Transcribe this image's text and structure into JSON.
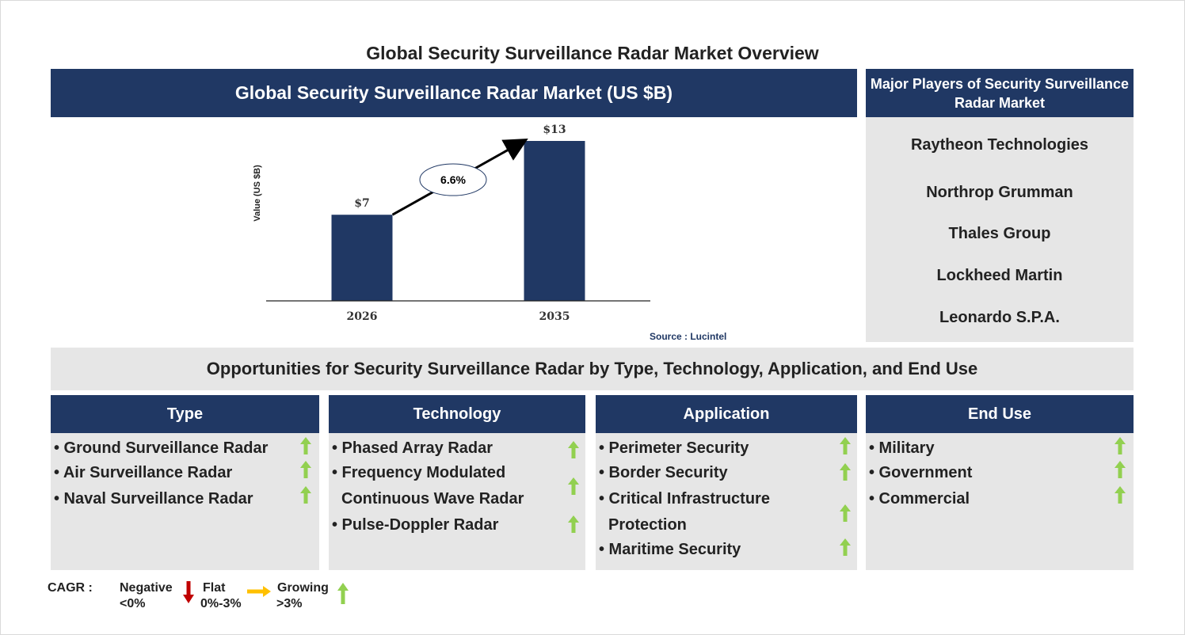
{
  "title": "Global Security Surveillance Radar Market Overview",
  "market_header": "Global Security Surveillance Radar Market (US $B)",
  "chart_data": {
    "type": "bar",
    "categories": [
      "2026",
      "2035"
    ],
    "values": [
      7,
      13
    ],
    "data_labels": [
      "$7",
      "$13"
    ],
    "ylabel": "Value (US $B)",
    "xlabel": "",
    "cagr_annotation": "6.6%",
    "bar_color": "#203864",
    "grid": false
  },
  "source": "Source : Lucintel",
  "players": {
    "header": "Major Players of Security Surveillance Radar Market",
    "list": [
      "Raytheon Technologies",
      "Northrop Grumman",
      "Thales Group",
      "Lockheed Martin",
      "Leonardo S.P.A."
    ]
  },
  "opportunities": {
    "header": "Opportunities for Security Surveillance Radar by Type, Technology, Application, and End Use",
    "columns": [
      {
        "title": "Type",
        "items": [
          "• Ground Surveillance Radar",
          "• Air Surveillance Radar",
          "• Naval Surveillance Radar"
        ],
        "trend": [
          "growing",
          "growing",
          "growing"
        ]
      },
      {
        "title": "Technology",
        "items": [
          "• Phased Array Radar",
          "• Frequency Modulated",
          "Continuous Wave Radar",
          "• Pulse-Doppler Radar"
        ],
        "trend": [
          "growing",
          "growing",
          "growing"
        ]
      },
      {
        "title": "Application",
        "items": [
          "• Perimeter Security",
          "• Border Security",
          "• Critical Infrastructure",
          "Protection",
          "• Maritime Security"
        ],
        "trend": [
          "growing",
          "growing",
          "growing",
          "growing"
        ]
      },
      {
        "title": "End Use",
        "items": [
          "• Military",
          "• Government",
          "• Commercial"
        ],
        "trend": [
          "growing",
          "growing",
          "growing"
        ]
      }
    ]
  },
  "legend": {
    "label": "CAGR :",
    "negative": {
      "name": "Negative",
      "range": "<0%",
      "color": "#c00000",
      "icon": "down-arrow-icon"
    },
    "flat": {
      "name": "Flat",
      "range": "0%-3%",
      "color": "#ffc000",
      "icon": "right-arrow-icon"
    },
    "growing": {
      "name": "Growing",
      "range": ">3%",
      "color": "#92d050",
      "icon": "up-arrow-icon"
    }
  },
  "colors": {
    "navy": "#203864",
    "panel_grey": "#e6e6e6",
    "growth_green": "#92d050"
  }
}
